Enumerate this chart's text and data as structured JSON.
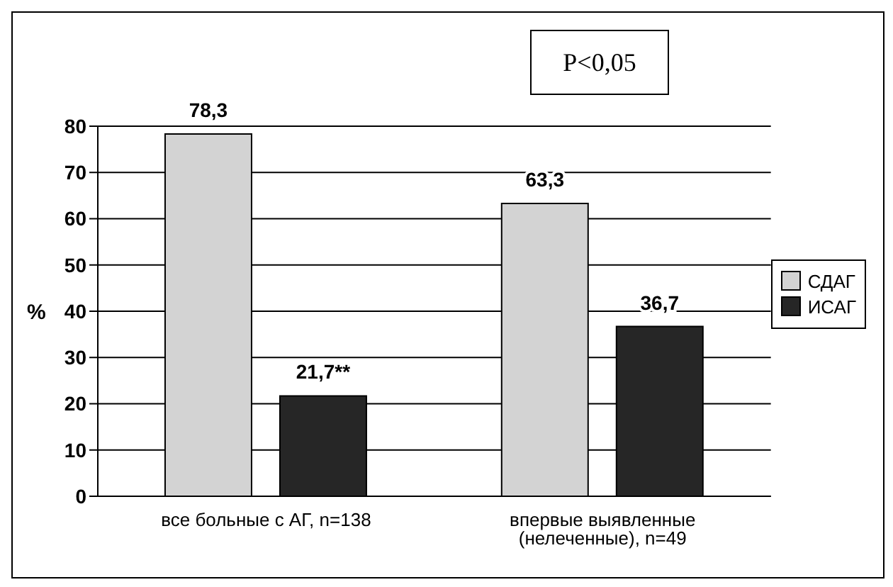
{
  "chart_data": {
    "type": "bar",
    "categories": [
      "все больные с АГ, n=138",
      "впервые выявленные (нелеченные),  n=49"
    ],
    "series": [
      {
        "name": "СДАГ",
        "color": "#d3d3d3",
        "values": [
          78.3,
          63.3
        ],
        "value_labels": [
          "78,3",
          "63,3"
        ]
      },
      {
        "name": "ИСАГ",
        "color": "#262626",
        "values": [
          21.7,
          36.7
        ],
        "value_labels": [
          "21,7**",
          "36,7"
        ]
      }
    ],
    "ylabel": "%",
    "ylim": [
      0,
      80
    ],
    "yticks": [
      0,
      10,
      20,
      30,
      40,
      50,
      60,
      70,
      80
    ],
    "grid": "y",
    "legend": "right",
    "annotations": [
      "P<0,05"
    ]
  }
}
